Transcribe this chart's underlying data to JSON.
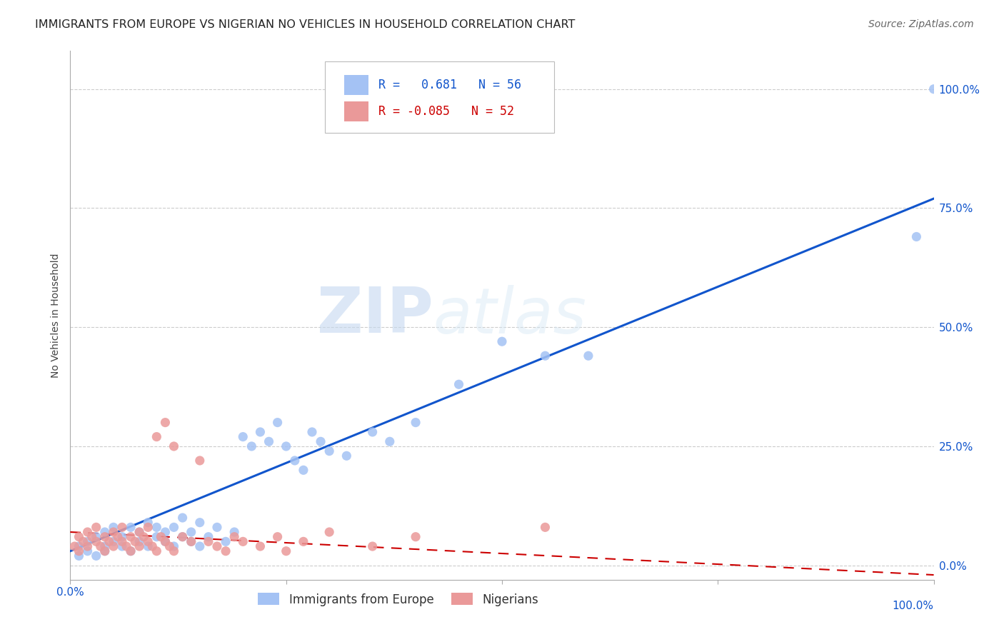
{
  "title": "IMMIGRANTS FROM EUROPE VS NIGERIAN NO VEHICLES IN HOUSEHOLD CORRELATION CHART",
  "source": "Source: ZipAtlas.com",
  "ylabel": "No Vehicles in Household",
  "ytick_values": [
    0,
    25,
    50,
    75,
    100
  ],
  "xlim": [
    0,
    100
  ],
  "ylim": [
    -3,
    108
  ],
  "legend_label_blue": "Immigrants from Europe",
  "legend_label_pink": "Nigerians",
  "blue_color": "#a4c2f4",
  "pink_color": "#ea9999",
  "blue_line_color": "#1155cc",
  "pink_line_color": "#cc0000",
  "watermark_zip": "ZIP",
  "watermark_atlas": "atlas",
  "blue_scatter_x": [
    1,
    1,
    2,
    2,
    3,
    3,
    4,
    4,
    4,
    5,
    5,
    6,
    6,
    7,
    7,
    8,
    8,
    9,
    9,
    10,
    10,
    11,
    11,
    12,
    12,
    13,
    13,
    14,
    14,
    15,
    15,
    16,
    17,
    18,
    19,
    20,
    21,
    22,
    23,
    24,
    25,
    26,
    27,
    28,
    29,
    30,
    32,
    35,
    37,
    40,
    45,
    50,
    55,
    60,
    98,
    100
  ],
  "blue_scatter_y": [
    2,
    4,
    3,
    5,
    2,
    6,
    4,
    3,
    7,
    5,
    8,
    4,
    6,
    3,
    8,
    5,
    7,
    4,
    9,
    6,
    8,
    5,
    7,
    4,
    8,
    6,
    10,
    5,
    7,
    4,
    9,
    6,
    8,
    5,
    7,
    27,
    25,
    28,
    26,
    30,
    25,
    22,
    20,
    28,
    26,
    24,
    23,
    28,
    26,
    30,
    38,
    47,
    44,
    44,
    69,
    100
  ],
  "pink_scatter_x": [
    0.5,
    1,
    1,
    1.5,
    2,
    2,
    2.5,
    3,
    3,
    3.5,
    4,
    4,
    4.5,
    5,
    5,
    5.5,
    6,
    6,
    6.5,
    7,
    7,
    7.5,
    8,
    8,
    8.5,
    9,
    9,
    9.5,
    10,
    10,
    10.5,
    11,
    11,
    11.5,
    12,
    12,
    13,
    14,
    15,
    16,
    17,
    18,
    19,
    20,
    22,
    24,
    25,
    27,
    30,
    35,
    40,
    55
  ],
  "pink_scatter_y": [
    4,
    3,
    6,
    5,
    4,
    7,
    6,
    5,
    8,
    4,
    3,
    6,
    5,
    4,
    7,
    6,
    5,
    8,
    4,
    3,
    6,
    5,
    4,
    7,
    6,
    5,
    8,
    4,
    3,
    27,
    6,
    5,
    30,
    4,
    3,
    25,
    6,
    5,
    22,
    5,
    4,
    3,
    6,
    5,
    4,
    6,
    3,
    5,
    7,
    4,
    6,
    8
  ],
  "blue_trend_x": [
    0,
    100
  ],
  "blue_trend_y": [
    3,
    77
  ],
  "pink_trend_x": [
    0,
    100
  ],
  "pink_trend_y": [
    7,
    -2
  ]
}
